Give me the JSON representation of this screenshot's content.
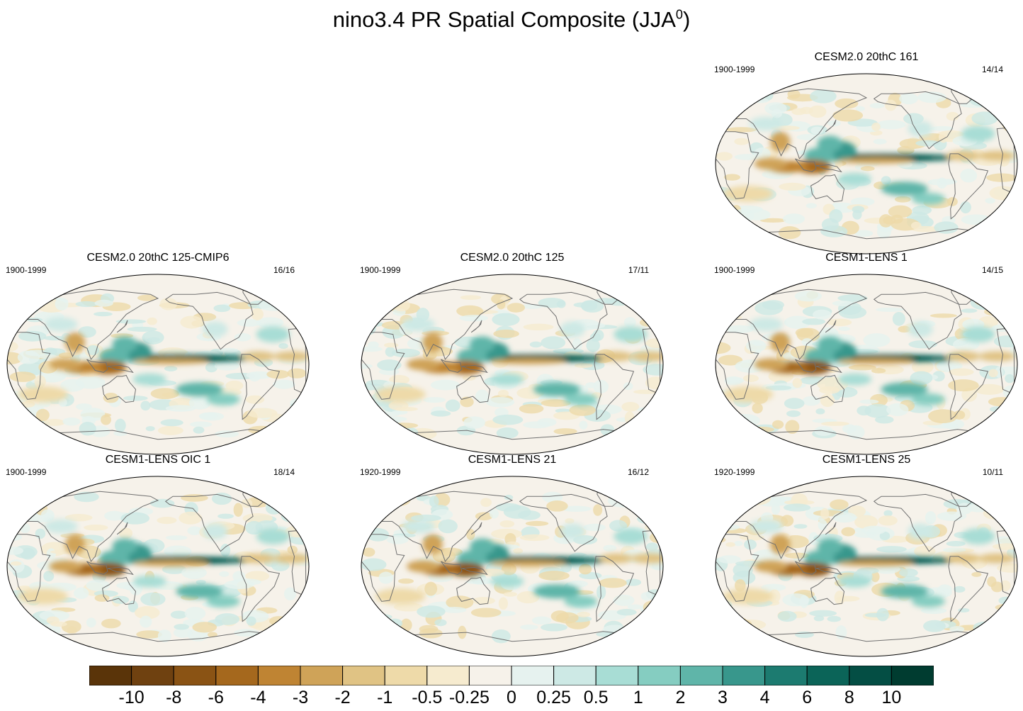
{
  "figure": {
    "title": "nino3.4 PR Spatial Composite (JJA",
    "title_sup": "0",
    "title_end": ")"
  },
  "colors": {
    "browns": [
      "#5a3409",
      "#6f4110",
      "#8a5314",
      "#a5681d",
      "#bf8433",
      "#cfa358",
      "#e0c384",
      "#eedaa9",
      "#f6ebcf"
    ],
    "neutral": "#f6f2ea",
    "teals": [
      "#e6f2ef",
      "#cde9e5",
      "#a8ddd5",
      "#85cdc1",
      "#5fb5a9",
      "#38978c",
      "#1c7b70",
      "#0b6458",
      "#044e44",
      "#003c30"
    ]
  },
  "chart_data": {
    "type": "heatmap",
    "title": "nino3.4 PR Spatial Composite (JJA0)",
    "variable": "PR",
    "season": "JJA",
    "projection": "Robinson",
    "panels": [
      {
        "title": "CESM2.0 20thC 161",
        "years": "1900-1999",
        "count": "14/14",
        "row": 1,
        "col": 3
      },
      {
        "title": "CESM2.0 20thC 125-CMIP6",
        "years": "1900-1999",
        "count": "16/16",
        "row": 2,
        "col": 1
      },
      {
        "title": "CESM2.0 20thC 125",
        "years": "1900-1999",
        "count": "17/11",
        "row": 2,
        "col": 2
      },
      {
        "title": "CESM1-LENS 1",
        "years": "1900-1999",
        "count": "14/15",
        "row": 2,
        "col": 3
      },
      {
        "title": "CESM1-LENS OIC 1",
        "years": "1900-1999",
        "count": "18/14",
        "row": 3,
        "col": 1
      },
      {
        "title": "CESM1-LENS 21",
        "years": "1920-1999",
        "count": "16/12",
        "row": 3,
        "col": 2
      },
      {
        "title": "CESM1-LENS 25",
        "years": "1920-1999",
        "count": "10/11",
        "row": 3,
        "col": 3
      }
    ],
    "colorbar": {
      "labels": [
        "-10",
        "-8",
        "-6",
        "-4",
        "-3",
        "-2",
        "-1",
        "-0.5",
        "-0.25",
        "0",
        "0.25",
        "0.5",
        "1",
        "2",
        "3",
        "4",
        "6",
        "8",
        "10"
      ],
      "num_boxes": 20
    }
  }
}
